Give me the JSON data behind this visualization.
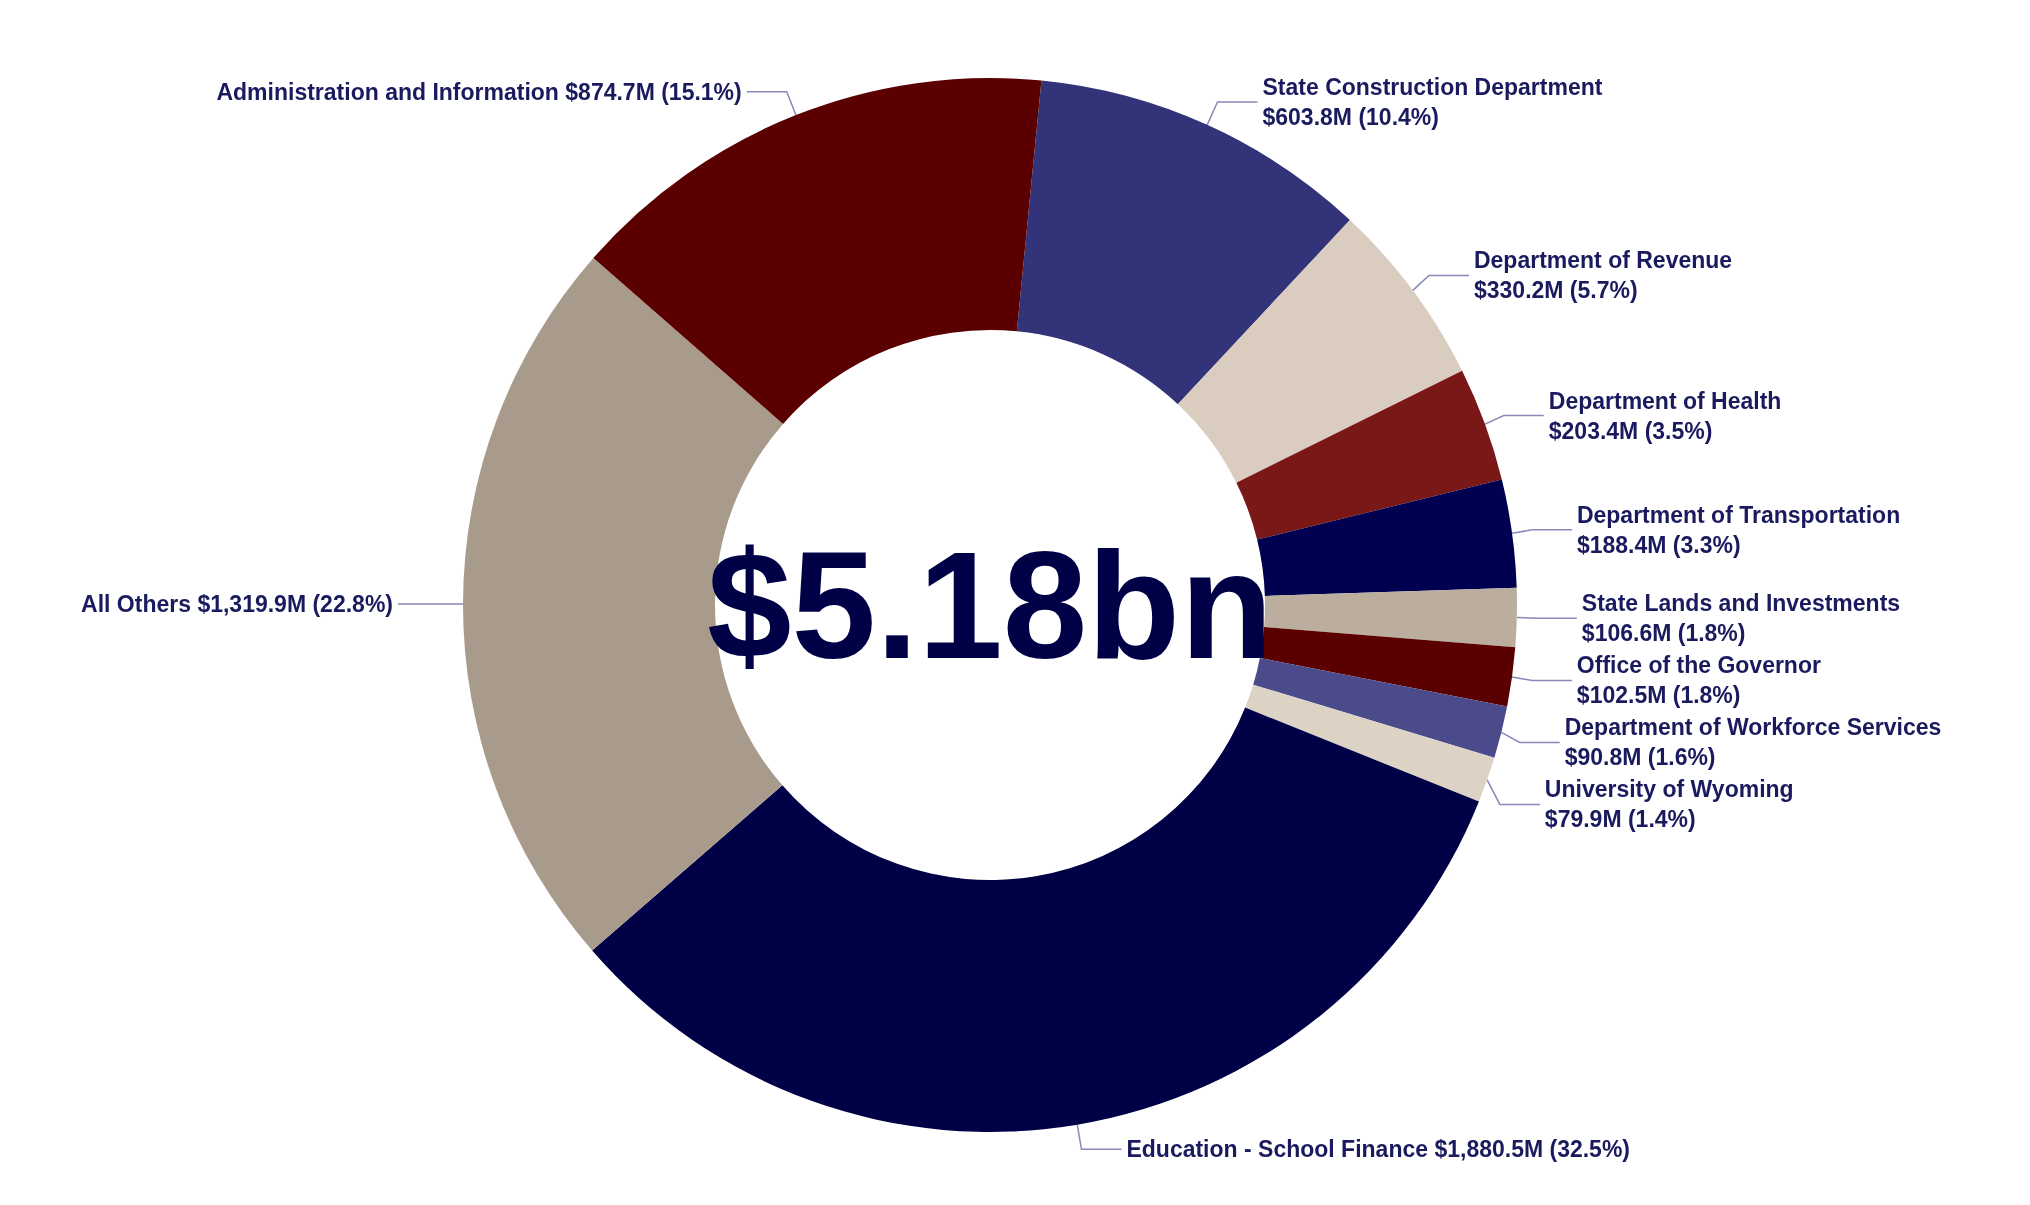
{
  "chart_data": {
    "type": "donut",
    "annotations": [
      "$5.18bn"
    ],
    "categories": [
      "State Construction Department",
      "Department of Revenue",
      "Department of Health",
      "Department of Transportation",
      "State Lands and Investments",
      "Office of the Governor",
      "Department of Workforce Services",
      "University of Wyoming",
      "Education - School Finance",
      "All Others",
      "Administration and Information"
    ],
    "values": [
      10.4,
      5.7,
      3.5,
      3.3,
      1.8,
      1.8,
      1.6,
      1.4,
      32.5,
      22.8,
      15.1
    ],
    "value_labels": [
      "$603.8M (10.4%)",
      "$330.2M (5.7%)",
      "$203.4M (3.5%)",
      "$188.4M (3.3%)",
      "$106.6M (1.8%)",
      "$102.5M (1.8%)",
      "$90.8M (1.6%)",
      "$79.9M (1.4%)",
      "$1,880.5M (32.5%)",
      "$1,319.9M (22.8%)",
      "$874.7M (15.1%)"
    ],
    "colors": [
      "#33337a",
      "#dacdc0",
      "#7a1818",
      "#000050",
      "#bbae9e",
      "#5a0000",
      "#4b4b8c",
      "#ddd3c5",
      "#000046",
      "#a89b8b",
      "#5a0000"
    ],
    "legend": false
  }
}
